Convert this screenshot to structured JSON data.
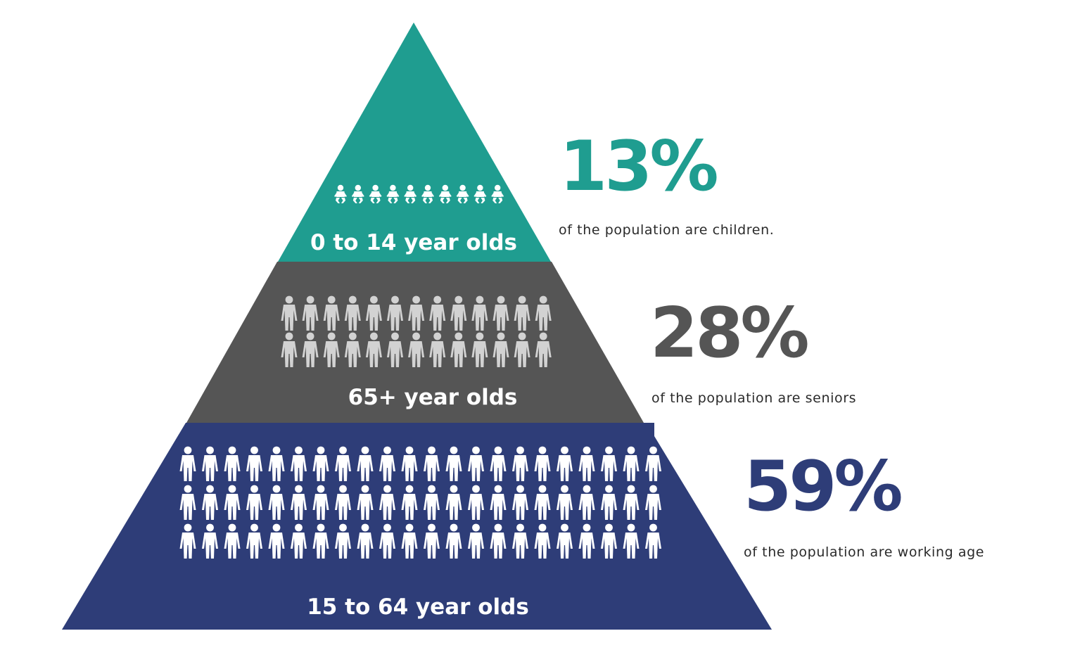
{
  "colors": {
    "children": "#1f9d90",
    "seniors": "#555555",
    "working": "#2e3d78",
    "children_icon": "#ffffff",
    "seniors_icon": "#d2d2d2",
    "working_icon": "#ffffff",
    "background": "#ffffff"
  },
  "tiers": [
    {
      "key": "children",
      "label": "0 to 14 year olds",
      "percent": "13%",
      "description": "of the population are children.",
      "icon": "baby-icon",
      "icon_rows": 1,
      "icon_cols": 10
    },
    {
      "key": "seniors",
      "label": "65+ year olds",
      "percent": "28%",
      "description": "of the population are seniors",
      "icon": "person-icon",
      "icon_rows": 2,
      "icon_cols": 13
    },
    {
      "key": "working",
      "label": "15 to 64 year olds",
      "percent": "59%",
      "description": "of the population are working age",
      "icon": "person-icon",
      "icon_rows": 3,
      "icon_cols": 22
    }
  ]
}
